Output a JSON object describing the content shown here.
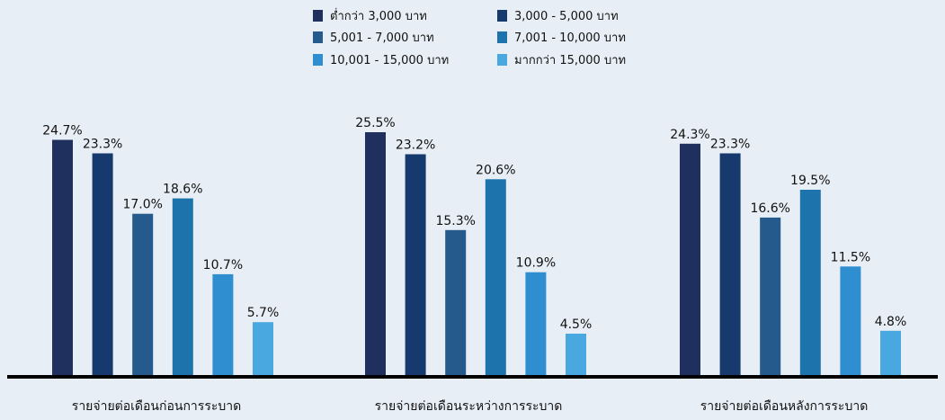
{
  "chart_data": {
    "type": "bar",
    "categories": [
      "รายจ่ายต่อเดือนก่อนการระบาด",
      "รายจ่ายต่อเดือนระหว่างการระบาด",
      "รายจ่ายต่อเดือนหลังการระบาด"
    ],
    "series": [
      {
        "name": "ต่ำกว่า 3,000 บาท",
        "color": "#1f2f5e",
        "values": [
          24.7,
          25.5,
          24.3
        ],
        "labels": [
          "24.7%",
          "25.5%",
          "24.3%"
        ]
      },
      {
        "name": "3,000 - 5,000 บาท",
        "color": "#163a6e",
        "values": [
          23.3,
          23.2,
          23.3
        ],
        "labels": [
          "23.3%",
          "23.2%",
          "23.3%"
        ]
      },
      {
        "name": "5,001 - 7,000 บาท",
        "color": "#245a8c",
        "values": [
          17.0,
          15.3,
          16.6
        ],
        "labels": [
          "17.0%",
          "15.3%",
          "16.6%"
        ]
      },
      {
        "name": "7,001 - 10,000 บาท",
        "color": "#1d74ac",
        "values": [
          18.6,
          20.6,
          19.5
        ],
        "labels": [
          "18.6%",
          "20.6%",
          "19.5%"
        ]
      },
      {
        "name": "10,001 - 15,000 บาท",
        "color": "#2f8ed0",
        "values": [
          10.7,
          10.9,
          11.5
        ],
        "labels": [
          "10.7%",
          "10.9%",
          "11.5%"
        ]
      },
      {
        "name": "มากกว่า 15,000 บาท",
        "color": "#4aa8e0",
        "values": [
          5.7,
          4.5,
          4.8
        ],
        "labels": [
          "5.7%",
          "4.5%",
          "4.8%"
        ]
      }
    ],
    "ylim": [
      0,
      25.5
    ],
    "grid": false,
    "legend_position": "top-center"
  }
}
